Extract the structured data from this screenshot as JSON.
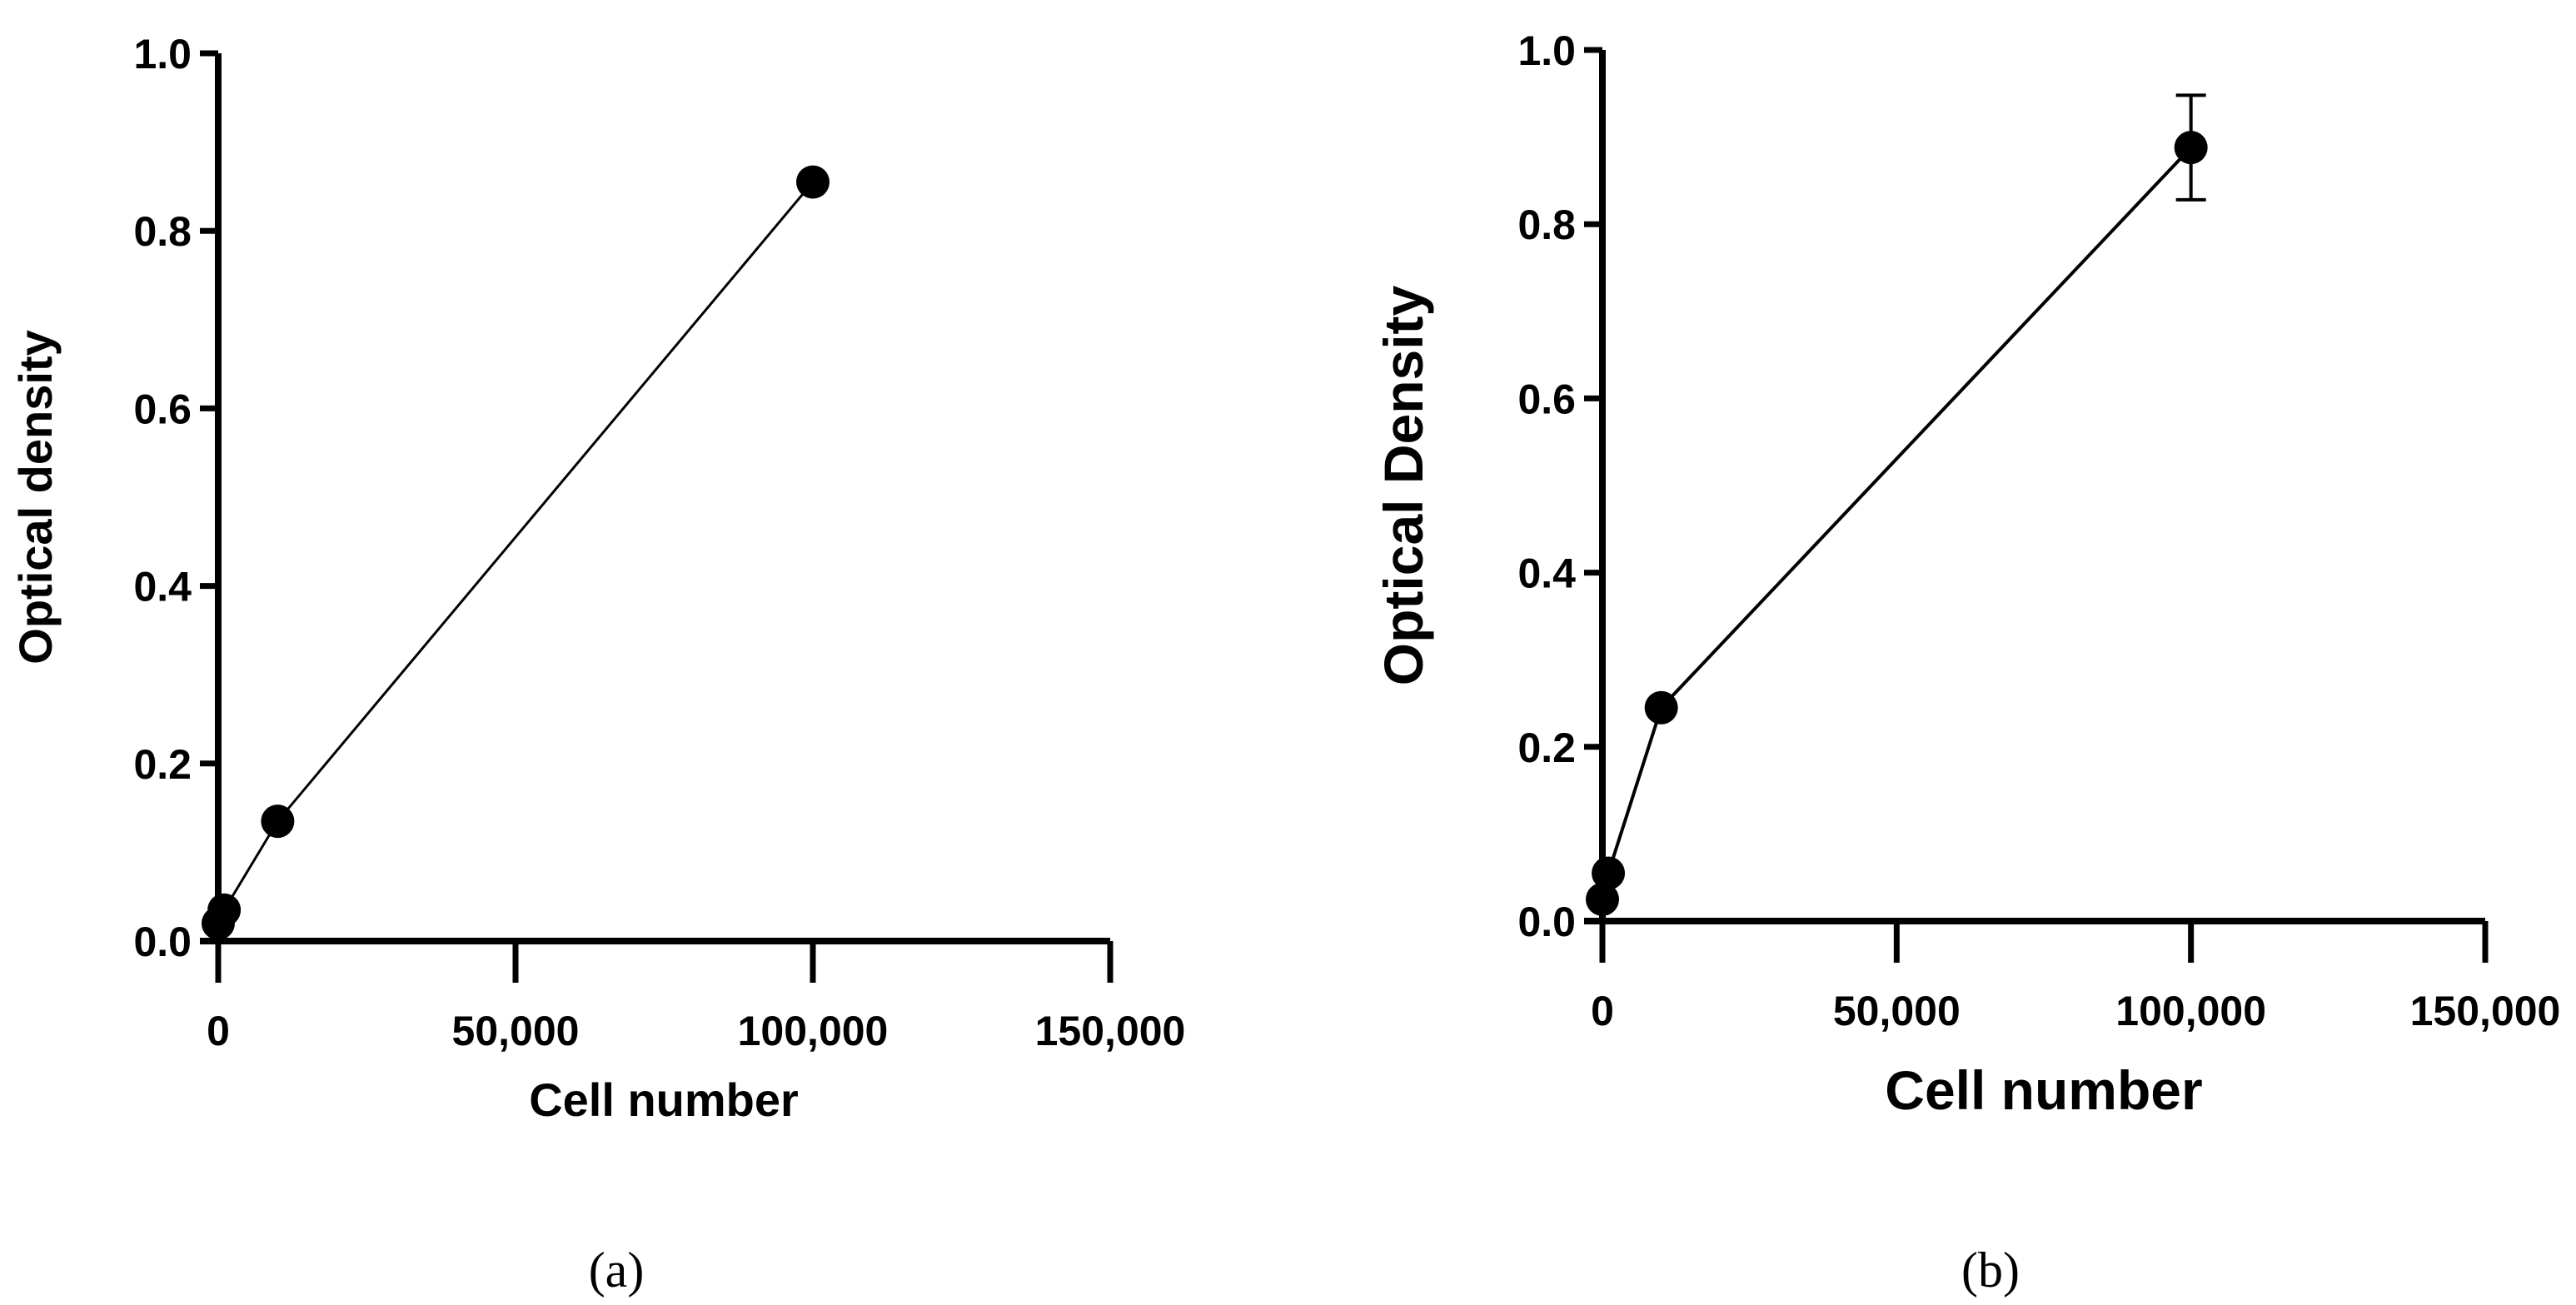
{
  "chart_data": [
    {
      "type": "line",
      "panel_label": "(a)",
      "xlabel": "Cell number",
      "ylabel": "Optical density",
      "xlim": [
        0,
        150000
      ],
      "ylim": [
        0,
        1.0
      ],
      "xticks": [
        "0",
        "50,000",
        "100,000",
        "150,000"
      ],
      "yticks": [
        "0.0",
        "0.2",
        "0.4",
        "0.6",
        "0.8",
        "1.0"
      ],
      "grid": false,
      "x": [
        0,
        1000,
        10000,
        100000
      ],
      "y": [
        0.02,
        0.035,
        0.135,
        0.855
      ],
      "error": null
    },
    {
      "type": "line",
      "panel_label": "(b)",
      "xlabel": "Cell number",
      "ylabel": "Optical Density",
      "xlim": [
        0,
        150000
      ],
      "ylim": [
        0,
        1.0
      ],
      "xticks": [
        "0",
        "50,000",
        "100,000",
        "150,000"
      ],
      "yticks": [
        "0.0",
        "0.2",
        "0.4",
        "0.6",
        "0.8",
        "1.0"
      ],
      "grid": false,
      "x": [
        0,
        1000,
        10000,
        100000
      ],
      "y": [
        0.025,
        0.055,
        0.245,
        0.888
      ],
      "error": [
        0,
        0,
        0,
        0.06
      ]
    }
  ],
  "colors": {
    "marker": "#000000",
    "line": "#000000"
  }
}
